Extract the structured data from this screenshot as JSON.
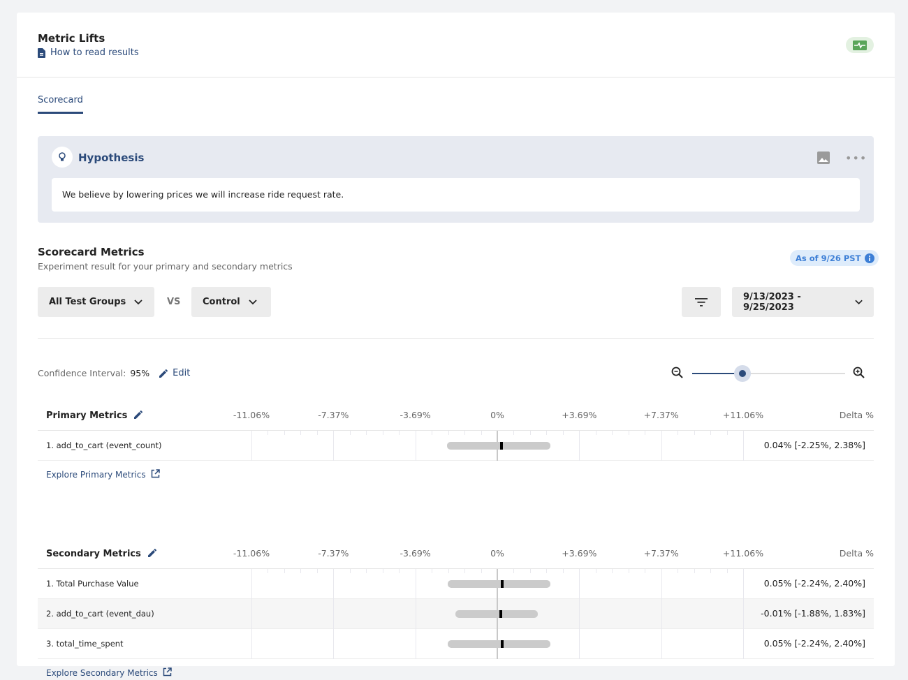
{
  "header": {
    "title": "Metric Lifts",
    "help_link": "How to read results",
    "status_icon": "pulse-icon",
    "status_color": "#5aa55a"
  },
  "tabs": [
    {
      "label": "Scorecard",
      "active": true
    }
  ],
  "hypothesis": {
    "title": "Hypothesis",
    "text": "We believe by lowering prices we will increase ride request rate."
  },
  "scorecard": {
    "title": "Scorecard Metrics",
    "subtitle": "Experiment result for your primary and secondary metrics",
    "as_of": "As of 9/26 PST",
    "test_group": "All Test Groups",
    "vs": "VS",
    "control": "Control",
    "date_range": "9/13/2023 - 9/25/2023",
    "ci_label": "Confidence Interval:",
    "ci_value": "95%",
    "edit_label": "Edit",
    "zoom_level": 0.33
  },
  "chart_data": {
    "type": "interval",
    "axis_ticks": [
      "-11.06%",
      "-7.37%",
      "-3.69%",
      "0%",
      "+3.69%",
      "+7.37%",
      "+11.06%"
    ],
    "xlim": [
      -11.06,
      11.06
    ],
    "delta_header": "Delta %",
    "sections": [
      {
        "name": "Primary Metrics",
        "explore": "Explore Primary Metrics",
        "metrics": [
          {
            "label": "1. add_to_cart (event_count)",
            "delta": 0.04,
            "low": -2.25,
            "high": 2.38,
            "text": "0.04% [-2.25%, 2.38%]"
          }
        ]
      },
      {
        "name": "Secondary Metrics",
        "explore": "Explore Secondary Metrics",
        "metrics": [
          {
            "label": "1. Total Purchase Value",
            "delta": 0.05,
            "low": -2.24,
            "high": 2.4,
            "text": "0.05% [-2.24%, 2.40%]"
          },
          {
            "label": "2. add_to_cart (event_dau)",
            "delta": -0.01,
            "low": -1.88,
            "high": 1.83,
            "text": "-0.01% [-1.88%, 1.83%]"
          },
          {
            "label": "3. total_time_spent",
            "delta": 0.05,
            "low": -2.24,
            "high": 2.4,
            "text": "0.05% [-2.24%, 2.40%]"
          }
        ]
      }
    ]
  }
}
